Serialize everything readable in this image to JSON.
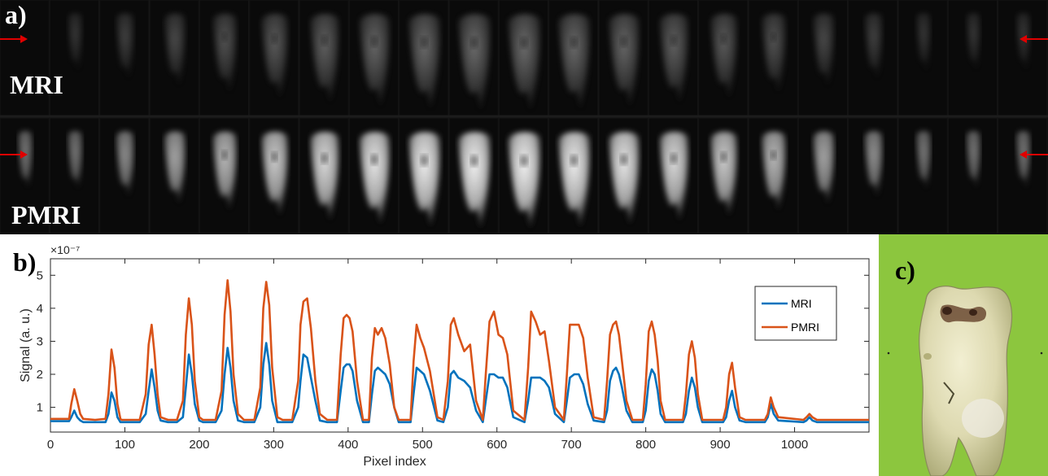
{
  "panel_a": {
    "label": "a)",
    "rows": [
      {
        "name": "MRI",
        "label": "MRI",
        "intensity": 0.55
      },
      {
        "name": "PMRI",
        "label": "PMRI",
        "intensity": 0.95
      }
    ],
    "slice_count": 21,
    "arrow_color": "#e00000"
  },
  "panel_b": {
    "label": "b)"
  },
  "panel_c": {
    "label": "c)"
  },
  "chart_data": {
    "type": "line",
    "xlabel": "Pixel index",
    "ylabel": "Signal (a. u.)",
    "y_multiplier": "×10⁻⁷",
    "xlim": [
      0,
      1100
    ],
    "ylim": [
      0.25,
      5.5
    ],
    "xticks": [
      0,
      100,
      200,
      300,
      400,
      500,
      600,
      700,
      800,
      900,
      1000
    ],
    "yticks": [
      1,
      2,
      3,
      4,
      5
    ],
    "legend_position": "top-right",
    "series": [
      {
        "name": "MRI",
        "color": "#0072bd",
        "x": [
          0,
          25,
          28,
          32,
          36,
          40,
          44,
          60,
          74,
          78,
          82,
          86,
          90,
          94,
          96,
          105,
          120,
          128,
          132,
          136,
          140,
          144,
          148,
          158,
          170,
          178,
          182,
          186,
          190,
          194,
          200,
          205,
          222,
          230,
          234,
          238,
          242,
          246,
          252,
          260,
          274,
          282,
          286,
          290,
          294,
          298,
          305,
          312,
          325,
          333,
          336,
          340,
          345,
          350,
          356,
          362,
          372,
          385,
          390,
          394,
          398,
          402,
          406,
          412,
          420,
          428,
          432,
          436,
          440,
          445,
          450,
          456,
          462,
          468,
          476,
          484,
          488,
          492,
          497,
          502,
          510,
          520,
          528,
          534,
          538,
          542,
          548,
          556,
          564,
          572,
          581,
          585,
          590,
          596,
          602,
          608,
          614,
          622,
          637,
          642,
          646,
          652,
          658,
          664,
          670,
          678,
          690,
          694,
          698,
          704,
          710,
          716,
          722,
          730,
          744,
          748,
          752,
          756,
          760,
          764,
          768,
          774,
          782,
          796,
          800,
          804,
          808,
          812,
          816,
          820,
          826,
          834,
          850,
          854,
          858,
          862,
          866,
          870,
          876,
          884,
          904,
          908,
          912,
          916,
          920,
          926,
          934,
          960,
          964,
          968,
          972,
          978,
          1012,
          1016,
          1020,
          1024,
          1030,
          1100
        ],
        "y": [
          0.58,
          0.58,
          0.7,
          0.9,
          0.7,
          0.6,
          0.55,
          0.55,
          0.55,
          0.8,
          1.45,
          1.2,
          0.7,
          0.55,
          0.55,
          0.55,
          0.55,
          0.8,
          1.5,
          2.15,
          1.6,
          0.9,
          0.6,
          0.55,
          0.55,
          0.7,
          1.6,
          2.6,
          2.0,
          1.1,
          0.6,
          0.55,
          0.55,
          0.9,
          2.0,
          2.8,
          2.2,
          1.2,
          0.6,
          0.55,
          0.55,
          1.0,
          2.3,
          2.95,
          2.3,
          1.2,
          0.55,
          0.55,
          0.55,
          1.0,
          1.8,
          2.6,
          2.5,
          1.9,
          1.2,
          0.6,
          0.55,
          0.55,
          1.5,
          2.2,
          2.3,
          2.3,
          2.1,
          1.2,
          0.55,
          0.55,
          1.4,
          2.1,
          2.2,
          2.1,
          2.0,
          1.7,
          1.0,
          0.55,
          0.55,
          0.55,
          1.4,
          2.2,
          2.1,
          2.0,
          1.5,
          0.6,
          0.55,
          1.0,
          2.0,
          2.1,
          1.9,
          1.8,
          1.6,
          0.9,
          0.55,
          1.2,
          2.0,
          2.0,
          1.9,
          1.9,
          1.6,
          0.7,
          0.55,
          1.2,
          1.9,
          1.9,
          1.9,
          1.8,
          1.6,
          0.8,
          0.55,
          1.2,
          1.9,
          2.0,
          2.0,
          1.7,
          1.1,
          0.6,
          0.55,
          0.9,
          1.8,
          2.1,
          2.2,
          2.0,
          1.6,
          0.9,
          0.55,
          0.55,
          0.9,
          1.8,
          2.15,
          2.0,
          1.5,
          0.8,
          0.55,
          0.55,
          0.55,
          0.8,
          1.5,
          1.9,
          1.6,
          1.0,
          0.55,
          0.55,
          0.55,
          0.7,
          1.2,
          1.5,
          1.0,
          0.6,
          0.55,
          0.55,
          0.7,
          1.1,
          0.8,
          0.6,
          0.55,
          0.6,
          0.7,
          0.6,
          0.55,
          0.55
        ]
      },
      {
        "name": "PMRI",
        "color": "#d95319",
        "x": [
          0,
          25,
          28,
          32,
          36,
          40,
          44,
          60,
          74,
          78,
          82,
          86,
          90,
          94,
          96,
          105,
          120,
          128,
          132,
          136,
          140,
          144,
          148,
          158,
          170,
          178,
          182,
          186,
          190,
          194,
          200,
          205,
          222,
          230,
          234,
          238,
          242,
          246,
          252,
          260,
          274,
          282,
          286,
          290,
          294,
          298,
          305,
          312,
          325,
          333,
          336,
          340,
          345,
          350,
          356,
          362,
          372,
          385,
          390,
          394,
          398,
          402,
          406,
          412,
          420,
          428,
          432,
          436,
          440,
          445,
          450,
          456,
          462,
          468,
          476,
          484,
          488,
          492,
          497,
          502,
          510,
          520,
          528,
          534,
          538,
          542,
          548,
          556,
          564,
          572,
          581,
          585,
          590,
          596,
          602,
          608,
          614,
          622,
          637,
          642,
          646,
          652,
          658,
          664,
          670,
          678,
          690,
          694,
          698,
          704,
          710,
          716,
          722,
          730,
          744,
          748,
          752,
          756,
          760,
          764,
          768,
          774,
          782,
          796,
          800,
          804,
          808,
          812,
          816,
          820,
          826,
          834,
          850,
          854,
          858,
          862,
          866,
          870,
          876,
          884,
          904,
          908,
          912,
          916,
          920,
          926,
          934,
          960,
          964,
          968,
          972,
          978,
          1012,
          1016,
          1020,
          1024,
          1030,
          1100
        ],
        "y": [
          0.65,
          0.65,
          1.1,
          1.55,
          1.2,
          0.8,
          0.65,
          0.62,
          0.65,
          1.4,
          2.75,
          2.2,
          1.1,
          0.65,
          0.62,
          0.62,
          0.62,
          1.4,
          2.9,
          3.5,
          2.6,
          1.4,
          0.7,
          0.62,
          0.62,
          1.2,
          3.2,
          4.3,
          3.5,
          1.8,
          0.7,
          0.62,
          0.62,
          1.5,
          3.8,
          4.85,
          3.9,
          2.0,
          0.8,
          0.62,
          0.62,
          1.6,
          4.0,
          4.8,
          4.1,
          2.2,
          0.7,
          0.62,
          0.62,
          1.8,
          3.5,
          4.2,
          4.3,
          3.4,
          1.8,
          0.8,
          0.62,
          0.62,
          2.6,
          3.7,
          3.8,
          3.7,
          3.3,
          1.8,
          0.62,
          0.62,
          2.5,
          3.4,
          3.2,
          3.4,
          3.1,
          2.3,
          1.0,
          0.62,
          0.62,
          0.62,
          2.4,
          3.5,
          3.1,
          2.8,
          2.1,
          0.7,
          0.62,
          1.8,
          3.5,
          3.7,
          3.2,
          2.7,
          2.9,
          1.2,
          0.62,
          2.0,
          3.6,
          3.9,
          3.2,
          3.1,
          2.6,
          0.9,
          0.62,
          2.2,
          3.9,
          3.6,
          3.2,
          3.3,
          2.4,
          1.0,
          0.62,
          2.0,
          3.5,
          3.5,
          3.5,
          3.1,
          1.9,
          0.7,
          0.62,
          1.8,
          3.2,
          3.5,
          3.6,
          3.2,
          2.4,
          1.2,
          0.62,
          0.62,
          1.7,
          3.3,
          3.6,
          3.2,
          2.4,
          1.2,
          0.62,
          0.62,
          0.62,
          1.4,
          2.6,
          3.0,
          2.5,
          1.4,
          0.62,
          0.62,
          0.62,
          1.0,
          2.0,
          2.35,
          1.6,
          0.7,
          0.62,
          0.62,
          0.8,
          1.3,
          1.0,
          0.7,
          0.62,
          0.7,
          0.8,
          0.7,
          0.62,
          0.62
        ]
      }
    ]
  }
}
